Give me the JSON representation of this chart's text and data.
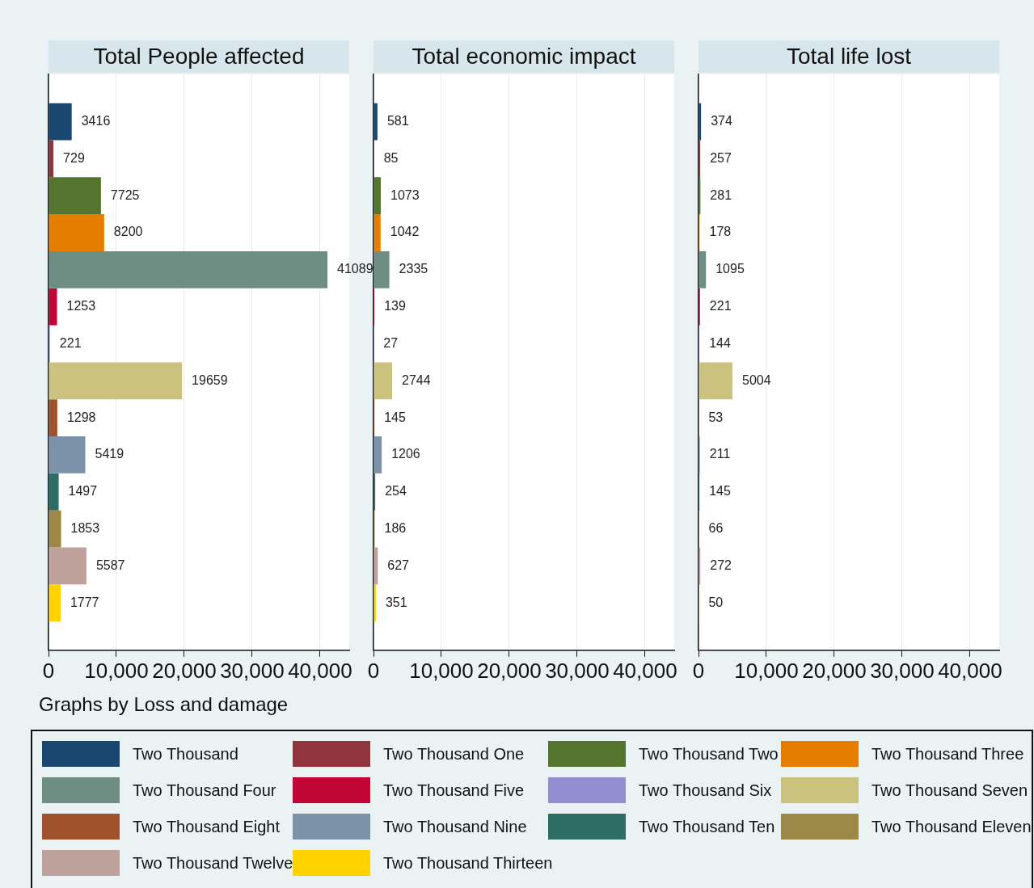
{
  "chart_data": [
    {
      "type": "bar",
      "orientation": "horizontal",
      "title": "Total People affected",
      "categories": [
        null
      ],
      "xlim": [
        0,
        44300
      ],
      "xticks": [
        {
          "value": 0,
          "label": "0"
        },
        {
          "value": 10000,
          "label": "10,000"
        },
        {
          "value": 20000,
          "label": "20,000"
        },
        {
          "value": 30000,
          "label": "30,000"
        },
        {
          "value": 40000,
          "label": "40,000"
        }
      ],
      "grid": "x",
      "data_labels": true,
      "legend": "bottom",
      "annotations": [
        "Graphs by Loss and damage"
      ],
      "series": [
        {
          "name": "Two Thousand",
          "color": "#1a476f",
          "values": [
            3416
          ]
        },
        {
          "name": "Two Thousand One",
          "color": "#90353b",
          "values": [
            729
          ]
        },
        {
          "name": "Two Thousand Two",
          "color": "#55752f",
          "values": [
            7725
          ]
        },
        {
          "name": "Two Thousand Three",
          "color": "#e37e00",
          "values": [
            8200
          ]
        },
        {
          "name": "Two Thousand Four",
          "color": "#6e8e84",
          "values": [
            41089
          ]
        },
        {
          "name": "Two Thousand Five",
          "color": "#c10534",
          "values": [
            1253
          ]
        },
        {
          "name": "Two Thousand Six",
          "color": "#938dd2",
          "values": [
            221
          ]
        },
        {
          "name": "Two Thousand Seven",
          "color": "#cac27e",
          "values": [
            19659
          ]
        },
        {
          "name": "Two Thousand Eight",
          "color": "#a0522d",
          "values": [
            1298
          ]
        },
        {
          "name": "Two Thousand Nine",
          "color": "#7b92a8",
          "values": [
            5419
          ]
        },
        {
          "name": "Two Thousand Ten",
          "color": "#2d6d66",
          "values": [
            1497
          ]
        },
        {
          "name": "Two Thousand Eleven",
          "color": "#9c8847",
          "values": [
            1853
          ]
        },
        {
          "name": "Two Thousand Twelve",
          "color": "#bfa19c",
          "values": [
            5587
          ]
        },
        {
          "name": "Two Thousand Thirteen",
          "color": "#ffd200",
          "values": [
            1777
          ]
        }
      ]
    },
    {
      "type": "bar",
      "orientation": "horizontal",
      "title": "Total economic impact",
      "categories": [
        null
      ],
      "xlim": [
        0,
        44300
      ],
      "xticks": [
        {
          "value": 0,
          "label": "0"
        },
        {
          "value": 10000,
          "label": "10,000"
        },
        {
          "value": 20000,
          "label": "20,000"
        },
        {
          "value": 30000,
          "label": "30,000"
        },
        {
          "value": 40000,
          "label": "40,000"
        }
      ],
      "grid": "x",
      "data_labels": true,
      "series": [
        {
          "color": "#1a476f",
          "values": [
            581
          ]
        },
        {
          "color": "#90353b",
          "values": [
            85
          ]
        },
        {
          "color": "#55752f",
          "values": [
            1073
          ]
        },
        {
          "color": "#e37e00",
          "values": [
            1042
          ]
        },
        {
          "color": "#6e8e84",
          "values": [
            2335
          ]
        },
        {
          "color": "#c10534",
          "values": [
            139
          ]
        },
        {
          "color": "#938dd2",
          "values": [
            27
          ]
        },
        {
          "color": "#cac27e",
          "values": [
            2744
          ]
        },
        {
          "color": "#a0522d",
          "values": [
            145
          ]
        },
        {
          "color": "#7b92a8",
          "values": [
            1206
          ]
        },
        {
          "color": "#2d6d66",
          "values": [
            254
          ]
        },
        {
          "color": "#9c8847",
          "values": [
            186
          ]
        },
        {
          "color": "#bfa19c",
          "values": [
            627
          ]
        },
        {
          "color": "#ffd200",
          "values": [
            351
          ]
        }
      ]
    },
    {
      "type": "bar",
      "orientation": "horizontal",
      "title": "Total life lost",
      "categories": [
        null
      ],
      "xlim": [
        0,
        44300
      ],
      "xticks": [
        {
          "value": 0,
          "label": "0"
        },
        {
          "value": 10000,
          "label": "10,000"
        },
        {
          "value": 20000,
          "label": "20,000"
        },
        {
          "value": 30000,
          "label": "30,000"
        },
        {
          "value": 40000,
          "label": "40,000"
        }
      ],
      "grid": "x",
      "data_labels": true,
      "series": [
        {
          "color": "#1a476f",
          "values": [
            374
          ]
        },
        {
          "color": "#90353b",
          "values": [
            257
          ]
        },
        {
          "color": "#55752f",
          "values": [
            281
          ]
        },
        {
          "color": "#e37e00",
          "values": [
            178
          ]
        },
        {
          "color": "#6e8e84",
          "values": [
            1095
          ]
        },
        {
          "color": "#c10534",
          "values": [
            221
          ]
        },
        {
          "color": "#938dd2",
          "values": [
            144
          ]
        },
        {
          "color": "#cac27e",
          "values": [
            5004
          ]
        },
        {
          "color": "#a0522d",
          "values": [
            53
          ]
        },
        {
          "color": "#7b92a8",
          "values": [
            211
          ]
        },
        {
          "color": "#2d6d66",
          "values": [
            145
          ]
        },
        {
          "color": "#9c8847",
          "values": [
            66
          ]
        },
        {
          "color": "#bfa19c",
          "values": [
            272
          ]
        },
        {
          "color": "#ffd200",
          "values": [
            50
          ]
        }
      ]
    }
  ]
}
